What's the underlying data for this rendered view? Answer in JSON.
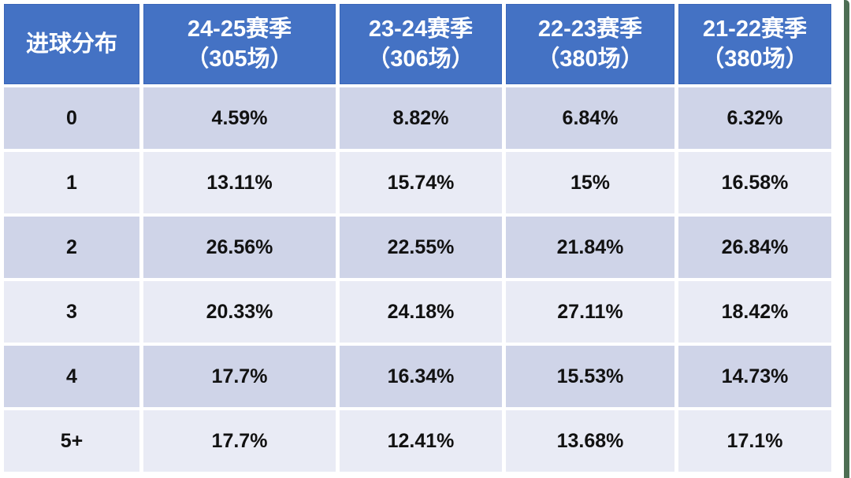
{
  "colors": {
    "header_bg": "#4472C4",
    "header_border": "#3A66B8",
    "row_band_dark": "#CFD4E8",
    "row_band_light": "#E9EBF5",
    "page_bg": "#FFFFFF",
    "edge_strip_green": "#4D6E53",
    "header_text": "#FFFFFF",
    "cell_text": "#111111"
  },
  "table": {
    "corner_label": "进球分布",
    "column_headers": [
      {
        "season": "24-25赛季",
        "matches": "（305场）"
      },
      {
        "season": "23-24赛季",
        "matches": "（306场）"
      },
      {
        "season": "22-23赛季",
        "matches": "（380场）"
      },
      {
        "season": "21-22赛季",
        "matches": "（380场）"
      }
    ],
    "rows": [
      {
        "label": "0",
        "values": [
          "4.59%",
          "8.82%",
          "6.84%",
          "6.32%"
        ]
      },
      {
        "label": "1",
        "values": [
          "13.11%",
          "15.74%",
          "15%",
          "16.58%"
        ]
      },
      {
        "label": "2",
        "values": [
          "26.56%",
          "22.55%",
          "21.84%",
          "26.84%"
        ]
      },
      {
        "label": "3",
        "values": [
          "20.33%",
          "24.18%",
          "27.11%",
          "18.42%"
        ]
      },
      {
        "label": "4",
        "values": [
          "17.7%",
          "16.34%",
          "15.53%",
          "14.73%"
        ]
      },
      {
        "label": "5+",
        "values": [
          "17.7%",
          "12.41%",
          "13.68%",
          "17.1%"
        ]
      }
    ]
  },
  "chart_data": {
    "type": "table",
    "title": "进球分布",
    "columns": [
      "进球分布",
      "24-25赛季（305场）",
      "23-24赛季（306场）",
      "22-23赛季（380场）",
      "21-22赛季（380场）"
    ],
    "categories": [
      "0",
      "1",
      "2",
      "3",
      "4",
      "5+"
    ],
    "series": [
      {
        "name": "24-25赛季（305场）",
        "values": [
          4.59,
          13.11,
          26.56,
          20.33,
          17.7,
          17.7
        ]
      },
      {
        "name": "23-24赛季（306场）",
        "values": [
          8.82,
          15.74,
          22.55,
          24.18,
          16.34,
          12.41
        ]
      },
      {
        "name": "22-23赛季（380场）",
        "values": [
          6.84,
          15,
          21.84,
          27.11,
          15.53,
          13.68
        ]
      },
      {
        "name": "21-22赛季（380场）",
        "values": [
          6.32,
          16.58,
          26.84,
          18.42,
          14.73,
          17.1
        ]
      }
    ],
    "unit": "%"
  }
}
